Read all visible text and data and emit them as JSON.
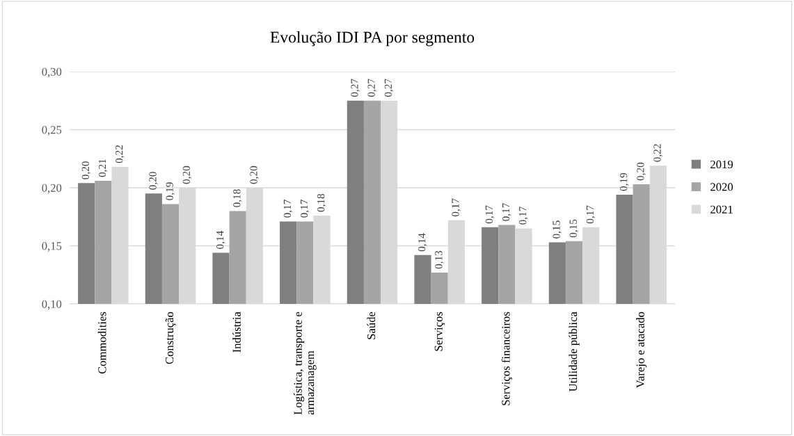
{
  "chart_data": {
    "type": "bar",
    "title": "Evolução IDI PA por segmento",
    "categories": [
      "Commodities",
      "Construção",
      "Indústria",
      "Logística, transporte e armazanagem",
      "Saúde",
      "Serviços",
      "Serviços financeiros",
      "Utilidade pública",
      "Varejo e atacado"
    ],
    "series": [
      {
        "name": "2019",
        "color": "#7f7f7f",
        "values": [
          0.204,
          0.195,
          0.144,
          0.171,
          0.275,
          0.142,
          0.166,
          0.153,
          0.194
        ],
        "value_labels": [
          "0,20",
          "0,20",
          "0,14",
          "0,17",
          "0,27",
          "0,14",
          "0,17",
          "0,15",
          "0,19"
        ]
      },
      {
        "name": "2020",
        "color": "#a5a5a5",
        "values": [
          0.206,
          0.186,
          0.18,
          0.171,
          0.275,
          0.127,
          0.168,
          0.154,
          0.203
        ],
        "value_labels": [
          "0,21",
          "0,19",
          "0,18",
          "0,17",
          "0,27",
          "0,13",
          "0,17",
          "0,15",
          "0,20"
        ]
      },
      {
        "name": "2021",
        "color": "#d9d9d9",
        "values": [
          0.218,
          0.2,
          0.2,
          0.176,
          0.275,
          0.172,
          0.165,
          0.166,
          0.219
        ],
        "value_labels": [
          "0,22",
          "0,20",
          "0,20",
          "0,18",
          "0,27",
          "0,17",
          "0,17",
          "0,17",
          "0,22"
        ]
      }
    ],
    "ylim": [
      0.1,
      0.3
    ],
    "yticks": [
      {
        "value": 0.1,
        "label": "0,10"
      },
      {
        "value": 0.15,
        "label": "0,15"
      },
      {
        "value": 0.2,
        "label": "0,20"
      },
      {
        "value": 0.25,
        "label": "0,25"
      },
      {
        "value": 0.3,
        "label": "0,30"
      }
    ],
    "grid": "y",
    "legend": "right"
  }
}
